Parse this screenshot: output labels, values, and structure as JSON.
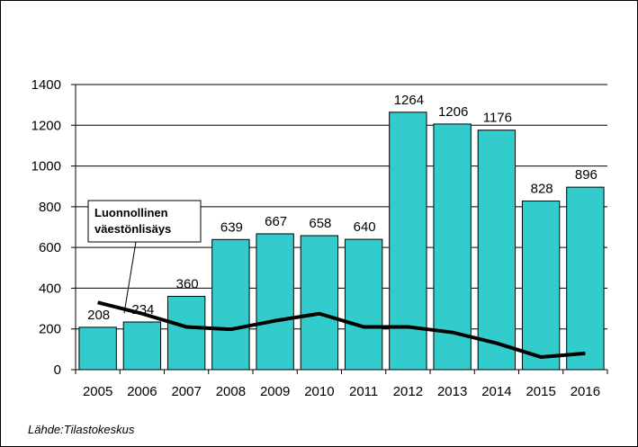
{
  "chart_data": {
    "type": "bar",
    "categories": [
      "2005",
      "2006",
      "2007",
      "2008",
      "2009",
      "2010",
      "2011",
      "2012",
      "2013",
      "2014",
      "2015",
      "2016"
    ],
    "series": [
      {
        "type": "bar",
        "values": [
          208,
          234,
          360,
          639,
          667,
          658,
          640,
          1264,
          1206,
          1176,
          828,
          896
        ]
      },
      {
        "type": "line",
        "name": "Luonnollinen väestönlisäys",
        "values": [
          330,
          275,
          210,
          198,
          240,
          275,
          210,
          210,
          183,
          130,
          62,
          80
        ]
      }
    ],
    "yticks": [
      "0",
      "200",
      "400",
      "600",
      "800",
      "1000",
      "1200",
      "1400"
    ],
    "ylim": [
      0,
      1400
    ],
    "grid": true,
    "colors": {
      "bar": "#33CCCC",
      "line": "#000000"
    },
    "annotation": {
      "text_lines": [
        "Luonnollinen",
        "väestönlisäys"
      ]
    }
  },
  "source": "Lähde:Tilastokeskus"
}
